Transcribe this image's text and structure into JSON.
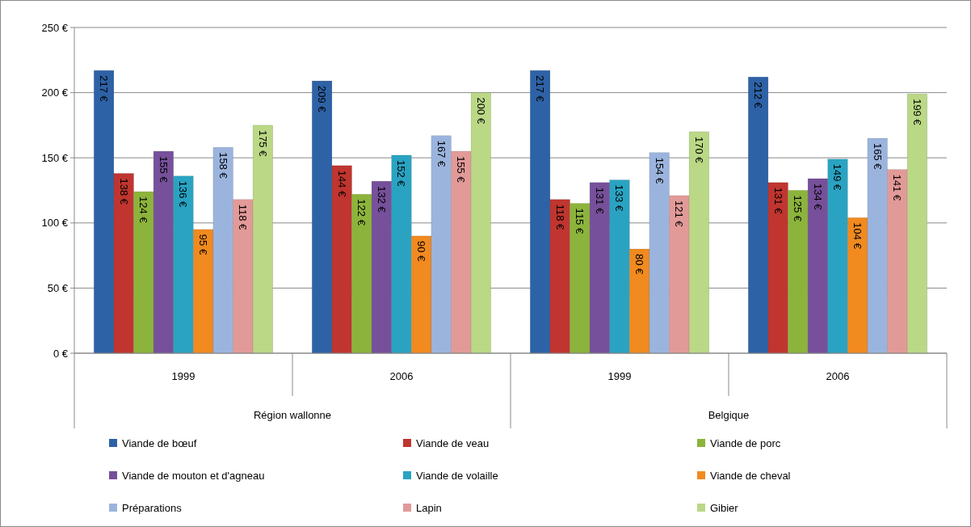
{
  "chart_data": {
    "type": "bar",
    "categories": [
      "1999",
      "2006",
      "1999",
      "2006"
    ],
    "annotations": [
      "Région wallonne",
      "Belgique"
    ],
    "series": [
      {
        "name": "Viande de bœuf",
        "color": "#2e62a6",
        "values": [
          217,
          209,
          217,
          212
        ],
        "value_labels": [
          "217 €",
          "209 €",
          "217 €",
          "212 €"
        ]
      },
      {
        "name": "Viande de veau",
        "color": "#c0352f",
        "values": [
          138,
          144,
          118,
          131
        ],
        "value_labels": [
          "138 €",
          "144 €",
          "118 €",
          "131 €"
        ]
      },
      {
        "name": "Viande de porc",
        "color": "#8cb43c",
        "values": [
          124,
          122,
          115,
          125
        ],
        "value_labels": [
          "124 €",
          "122 €",
          "115 €",
          "125 €"
        ]
      },
      {
        "name": "Viande de mouton  et d'agneau",
        "color": "#76509a",
        "values": [
          155,
          132,
          131,
          134
        ],
        "value_labels": [
          "155 €",
          "132 €",
          "131 €",
          "134 €"
        ]
      },
      {
        "name": "Viande de volaille",
        "color": "#2aa3c2",
        "values": [
          136,
          152,
          133,
          149
        ],
        "value_labels": [
          "136 €",
          "152 €",
          "133 €",
          "149 €"
        ]
      },
      {
        "name": "Viande de cheval",
        "color": "#f18a1f",
        "values": [
          95,
          90,
          80,
          104
        ],
        "value_labels": [
          "95 €",
          "90 €",
          "80 €",
          "104 €"
        ]
      },
      {
        "name": "Préparations",
        "color": "#9bb4de",
        "values": [
          158,
          167,
          154,
          165
        ],
        "value_labels": [
          "158 €",
          "167 €",
          "154 €",
          "165 €"
        ]
      },
      {
        "name": "Lapin",
        "color": "#e29a98",
        "values": [
          118,
          155,
          121,
          141
        ],
        "value_labels": [
          "118 €",
          "155 €",
          "121 €",
          "141 €"
        ]
      },
      {
        "name": "Gibier",
        "color": "#bad886",
        "values": [
          175,
          200,
          170,
          199
        ],
        "value_labels": [
          "175 €",
          "200 €",
          "170 €",
          "199 €"
        ]
      }
    ],
    "ylim": [
      0,
      250
    ],
    "yticks": [
      {
        "value": 0,
        "label": "0 €"
      },
      {
        "value": 50,
        "label": "50 €"
      },
      {
        "value": 100,
        "label": "100 €"
      },
      {
        "value": 150,
        "label": "150 €"
      },
      {
        "value": 200,
        "label": "200 €"
      },
      {
        "value": 250,
        "label": "250 €"
      }
    ],
    "grid": "y",
    "legend": "bottom"
  }
}
